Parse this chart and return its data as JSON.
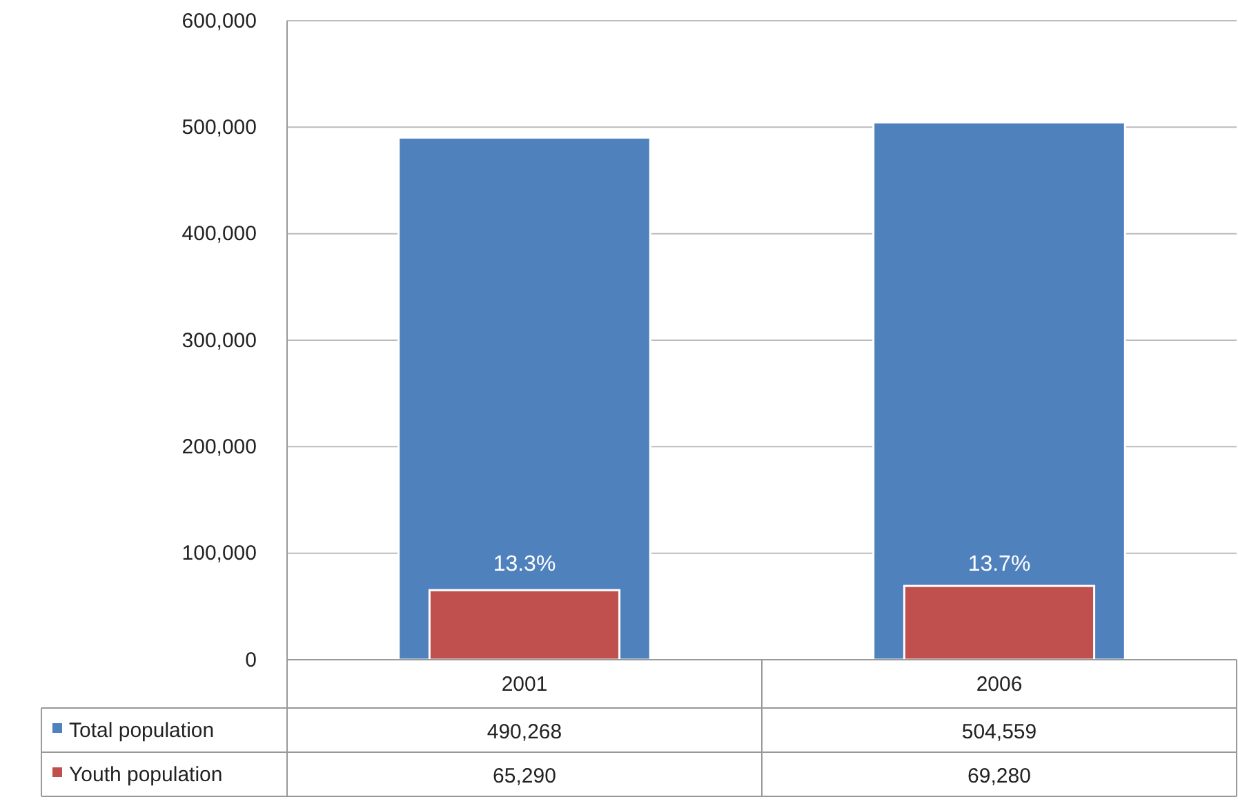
{
  "chart_data": {
    "type": "bar",
    "categories": [
      "2001",
      "2006"
    ],
    "series": [
      {
        "name": "Total population",
        "color": "#4f81bd",
        "values": [
          490268,
          504559
        ],
        "value_labels": [
          "490,268",
          "504,559"
        ]
      },
      {
        "name": "Youth population",
        "color": "#c0504d",
        "values": [
          65290,
          69280
        ],
        "value_labels": [
          "65,290",
          "69,280"
        ]
      }
    ],
    "ylim": [
      0,
      600000
    ],
    "yticks": [
      {
        "value": 0,
        "label": "0"
      },
      {
        "value": 100000,
        "label": "100,000"
      },
      {
        "value": 200000,
        "label": "200,000"
      },
      {
        "value": 300000,
        "label": "300,000"
      },
      {
        "value": 400000,
        "label": "400,000"
      },
      {
        "value": 500000,
        "label": "500,000"
      },
      {
        "value": 600000,
        "label": "600,000"
      }
    ],
    "grid": "y",
    "legend": "bottom",
    "annotations": [
      "13.3%",
      "13.7%"
    ]
  }
}
